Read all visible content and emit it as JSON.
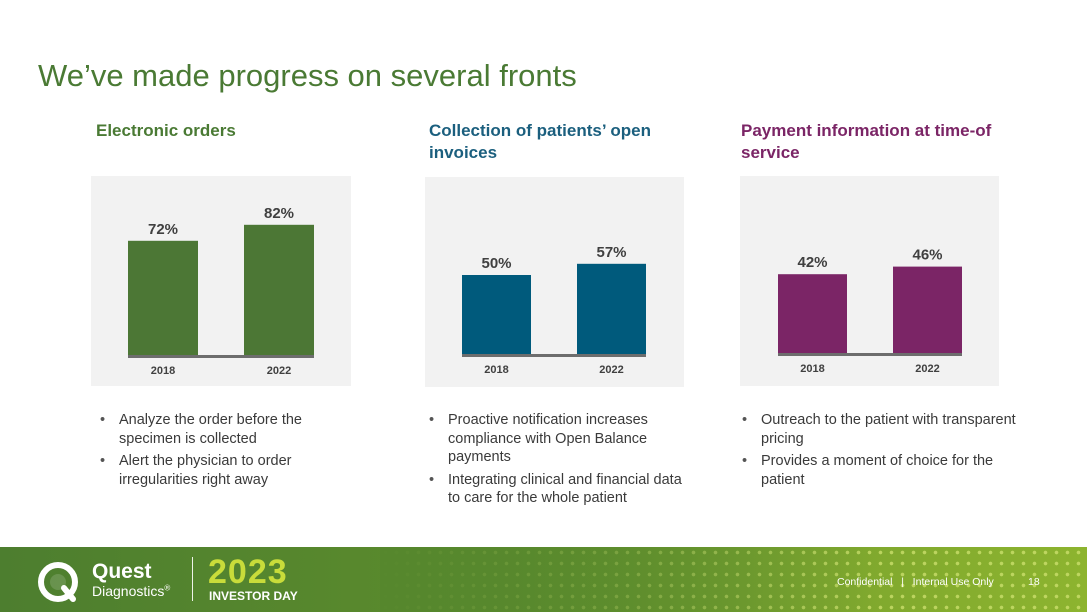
{
  "slide": {
    "title": "We’ve made progress on several fronts"
  },
  "chart_data": [
    {
      "type": "bar",
      "title": "Electronic orders",
      "categories": [
        "2018",
        "2022"
      ],
      "values": [
        72,
        82
      ],
      "value_labels": [
        "72%",
        "82%"
      ],
      "color": "#4c7735",
      "title_color": "#4a7a34",
      "ylim": [
        0,
        100
      ]
    },
    {
      "type": "bar",
      "title": "Collection of patients’ open invoices",
      "categories": [
        "2018",
        "2022"
      ],
      "values": [
        50,
        57
      ],
      "value_labels": [
        "50%",
        "57%"
      ],
      "color": "#005a7c",
      "title_color": "#1b5f7e",
      "ylim": [
        0,
        100
      ]
    },
    {
      "type": "bar",
      "title": "Payment information at time-of service",
      "categories": [
        "2018",
        "2022"
      ],
      "values": [
        42,
        46
      ],
      "value_labels": [
        "42%",
        "46%"
      ],
      "color": "#7b2566",
      "title_color": "#7b2566",
      "ylim": [
        0,
        100
      ]
    }
  ],
  "bullets": [
    [
      "Analyze the order before the specimen is collected",
      "Alert the physician to order irregularities right away"
    ],
    [
      "Proactive notification increases compliance with Open Balance payments",
      "Integrating clinical and financial data to care for the whole patient"
    ],
    [
      "Outreach to the patient with transparent pricing",
      "Provides a moment of choice for the patient"
    ]
  ],
  "footer": {
    "brand_name": "Quest",
    "brand_sub": "Diagnostics",
    "registered": "®",
    "year": "2023",
    "event": "INVESTOR DAY",
    "confidential": "Confidential   |   Internal Use Only",
    "page_number": "18"
  }
}
